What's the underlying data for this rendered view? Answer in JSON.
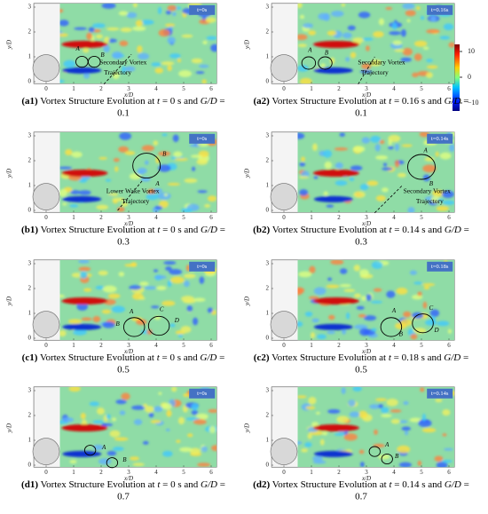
{
  "axes": {
    "xticks": [
      0,
      1,
      2,
      3,
      4,
      5,
      6
    ],
    "yticks": [
      0,
      1,
      2,
      3
    ],
    "xlabel": "x/D",
    "ylabel": "y/D"
  },
  "colorbar": {
    "ticks": [
      10,
      0,
      {
        "value": -10,
        "label": "−10"
      }
    ]
  },
  "panels": [
    {
      "time_label": "t=0s",
      "letters": [
        "A",
        "B"
      ],
      "trajectory": [
        "Secondary Vortex",
        "Trajectory"
      ],
      "caption": {
        "label": "(a1)",
        "lead": "Vortex Structure Evolution at",
        "t": "t",
        "eq1": "= 0 s and",
        "gd": "G/D",
        "eq2": "=",
        "val": "0.1"
      }
    },
    {
      "time_label": "t=0.16s",
      "letters": [
        "A",
        "B"
      ],
      "trajectory": [
        "Secondary Vortex",
        "Trajectory"
      ],
      "caption": {
        "label": "(a2)",
        "lead": "Vortex Structure Evolution at",
        "t": "t",
        "eq1": "= 0.16 s and",
        "gd": "G/D",
        "eq2": "=",
        "val": "0.1"
      }
    },
    {
      "time_label": "t=0s",
      "letters": [
        "B",
        "A"
      ],
      "trajectory": [
        "Lower Wake Vortex",
        "Trajectory"
      ],
      "caption": {
        "label": "(b1)",
        "lead": "Vortex Structure Evolution at",
        "t": "t",
        "eq1": "= 0 s and",
        "gd": "G/D",
        "eq2": "=",
        "val": "0.3"
      }
    },
    {
      "time_label": "t=0.14s",
      "letters": [
        "A",
        "B"
      ],
      "trajectory": [
        "Secondary Vortex",
        "Trajectory"
      ],
      "caption": {
        "label": "(b2)",
        "lead": "Vortex Structure Evolution at",
        "t": "t",
        "eq1": "= 0.14 s and",
        "gd": "G/D",
        "eq2": "=",
        "val": "0.3"
      }
    },
    {
      "time_label": "t=0s",
      "letters": [
        "A",
        "B",
        "C",
        "D"
      ],
      "trajectory": [],
      "caption": {
        "label": "(c1)",
        "lead": "Vortex Structure Evolution at",
        "t": "t",
        "eq1": "= 0 s and",
        "gd": "G/D",
        "eq2": "=",
        "val": "0.5"
      }
    },
    {
      "time_label": "t=0.18s",
      "letters": [
        "A",
        "B",
        "C",
        "D"
      ],
      "trajectory": [],
      "caption": {
        "label": "(c2)",
        "lead": "Vortex Structure Evolution at",
        "t": "t",
        "eq1": "= 0.18 s and",
        "gd": "G/D",
        "eq2": "=",
        "val": "0.5"
      }
    },
    {
      "time_label": "t=0s",
      "letters": [
        "A",
        "B"
      ],
      "trajectory": [],
      "caption": {
        "label": "(d1)",
        "lead": "Vortex Structure Evolution at",
        "t": "t",
        "eq1": "= 0 s and",
        "gd": "G/D",
        "eq2": "=",
        "val": "0.7"
      }
    },
    {
      "time_label": "t=0.14s",
      "letters": [
        "A",
        "B"
      ],
      "trajectory": [],
      "caption": {
        "label": "(d2)",
        "lead": "Vortex Structure Evolution at",
        "t": "t",
        "eq1": "= 0.14 s and",
        "gd": "G/D",
        "eq2": "=",
        "val": "0.7"
      }
    }
  ]
}
